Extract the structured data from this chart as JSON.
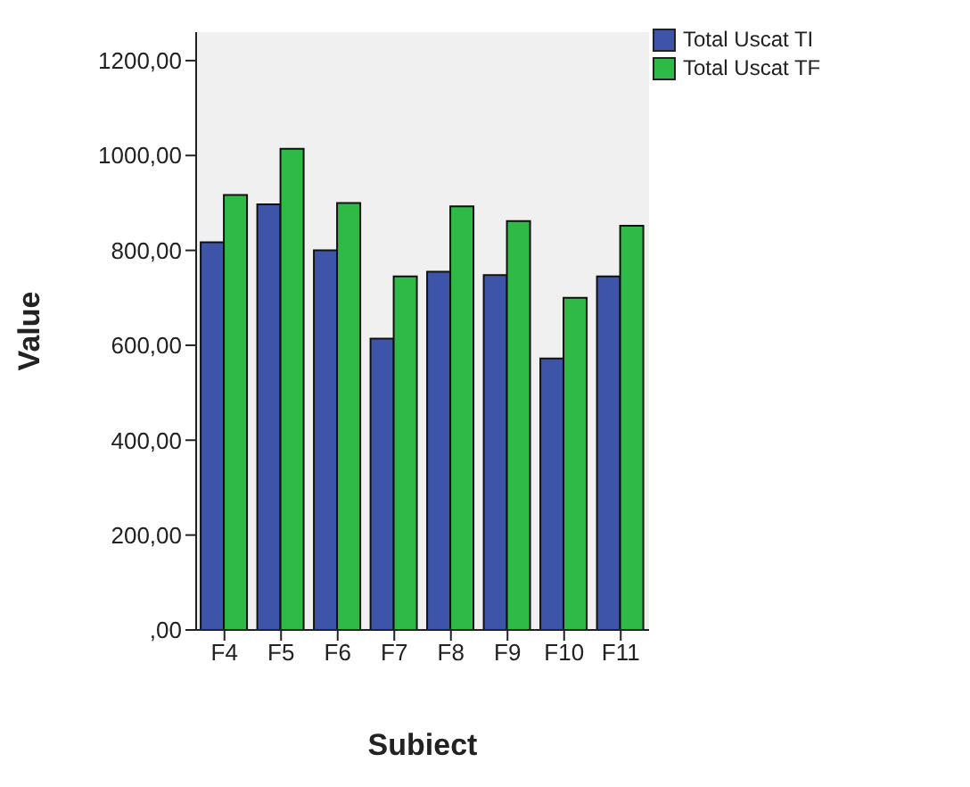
{
  "chart_data": {
    "type": "bar",
    "xlabel": "Subiect",
    "ylabel": "Value",
    "categories": [
      "F4",
      "F5",
      "F6",
      "F7",
      "F8",
      "F9",
      "F10",
      "F11"
    ],
    "series": [
      {
        "name": "Total Uscat TI",
        "color": "#3e54a8",
        "values": [
          817,
          897,
          800,
          614,
          755,
          748,
          572,
          745
        ]
      },
      {
        "name": "Total Uscat TF",
        "color": "#2fba47",
        "values": [
          917,
          1014,
          900,
          745,
          893,
          862,
          700,
          852
        ]
      }
    ],
    "ylim": [
      0,
      1260
    ],
    "yticks": [
      {
        "value": 0,
        "label": ",00"
      },
      {
        "value": 200,
        "label": "200,00"
      },
      {
        "value": 400,
        "label": "400,00"
      },
      {
        "value": 600,
        "label": "600,00"
      },
      {
        "value": 800,
        "label": "800,00"
      },
      {
        "value": 1000,
        "label": "1000,00"
      },
      {
        "value": 1200,
        "label": "1200,00"
      }
    ],
    "grid": false,
    "legend": "top right"
  }
}
